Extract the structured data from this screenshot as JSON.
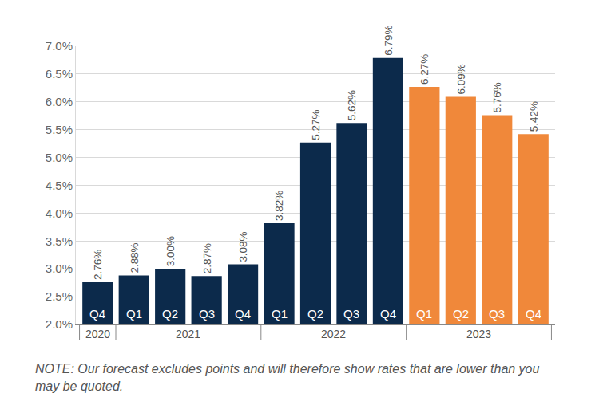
{
  "chart_data": {
    "type": "bar",
    "categories": [
      "Q4",
      "Q1",
      "Q2",
      "Q3",
      "Q4",
      "Q1",
      "Q2",
      "Q3",
      "Q4",
      "Q1",
      "Q2",
      "Q3",
      "Q4"
    ],
    "years": [
      "2020",
      "2021",
      "2021",
      "2021",
      "2021",
      "2022",
      "2022",
      "2022",
      "2022",
      "2023",
      "2023",
      "2023",
      "2023"
    ],
    "values": [
      2.76,
      2.88,
      3.0,
      2.87,
      3.08,
      3.82,
      5.27,
      5.62,
      6.79,
      6.27,
      6.09,
      5.76,
      5.42
    ],
    "value_labels": [
      "2.76%",
      "2.88%",
      "3.00%",
      "2.87%",
      "3.08%",
      "3.82%",
      "5.27%",
      "5.62%",
      "6.79%",
      "6.27%",
      "6.09%",
      "5.76%",
      "5.42%"
    ],
    "data_labels": true,
    "colors": [
      "#0c2a4b",
      "#0c2a4b",
      "#0c2a4b",
      "#0c2a4b",
      "#0c2a4b",
      "#0c2a4b",
      "#0c2a4b",
      "#0c2a4b",
      "#0c2a4b",
      "#f0883a",
      "#f0883a",
      "#f0883a",
      "#f0883a"
    ],
    "ylim": [
      2.0,
      7.0
    ],
    "yticks": [
      {
        "value": 2.0,
        "label": "2.0%"
      },
      {
        "value": 2.5,
        "label": "2.5%"
      },
      {
        "value": 3.0,
        "label": "3.0%"
      },
      {
        "value": 3.5,
        "label": "3.5%"
      },
      {
        "value": 4.0,
        "label": "4.0%"
      },
      {
        "value": 4.5,
        "label": "4.5%"
      },
      {
        "value": 5.0,
        "label": "5.0%"
      },
      {
        "value": 5.5,
        "label": "5.5%"
      },
      {
        "value": 6.0,
        "label": "6.0%"
      },
      {
        "value": 6.5,
        "label": "6.5%"
      },
      {
        "value": 7.0,
        "label": "7.0%"
      }
    ],
    "grid": true,
    "note": "NOTE: Our forecast excludes points and will therefore show rates that are lower than you may be quoted."
  }
}
